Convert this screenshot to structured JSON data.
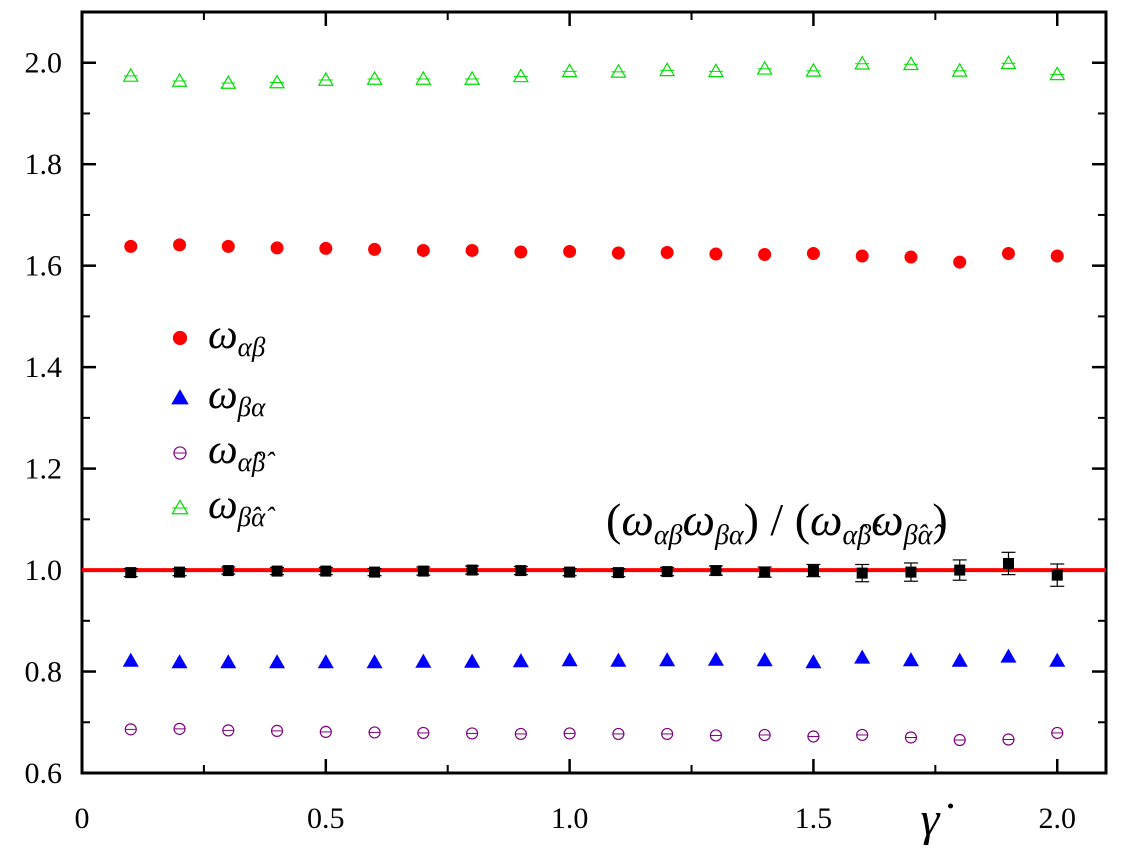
{
  "chart_data": {
    "type": "scatter",
    "title": "",
    "xlabel": "γ̇",
    "ylabel": "",
    "xlim": [
      0,
      2.1
    ],
    "ylim": [
      0.6,
      2.1
    ],
    "xticks": [
      0,
      0.5,
      1.0,
      1.5,
      2.0
    ],
    "xtick_labels": [
      "0",
      "0.5",
      "1.0",
      "1.5",
      "2.0"
    ],
    "yticks": [
      0.6,
      0.8,
      1.0,
      1.2,
      1.4,
      1.6,
      1.8,
      2.0
    ],
    "ytick_labels": [
      "0.6",
      "0.8",
      "1.0",
      "1.2",
      "1.4",
      "1.6",
      "1.8",
      "2.0"
    ],
    "grid": false,
    "legend_position": "left-middle",
    "x": [
      0.1,
      0.2,
      0.3,
      0.4,
      0.5,
      0.6,
      0.7,
      0.8,
      0.9,
      1.0,
      1.1,
      1.2,
      1.3,
      1.4,
      1.5,
      1.6,
      1.7,
      1.8,
      1.9,
      2.0
    ],
    "series": [
      {
        "name": "ω_αβ",
        "marker": "filled-circle",
        "color": "#ff0000",
        "values": [
          1.638,
          1.641,
          1.638,
          1.635,
          1.634,
          1.632,
          1.63,
          1.63,
          1.627,
          1.628,
          1.625,
          1.626,
          1.623,
          1.622,
          1.624,
          1.619,
          1.617,
          1.607,
          1.624,
          1.619
        ]
      },
      {
        "name": "ω_βα",
        "marker": "filled-triangle",
        "color": "#0000ff",
        "values": [
          0.821,
          0.818,
          0.818,
          0.818,
          0.818,
          0.818,
          0.819,
          0.819,
          0.82,
          0.822,
          0.821,
          0.822,
          0.823,
          0.822,
          0.818,
          0.827,
          0.822,
          0.821,
          0.829,
          0.821
        ]
      },
      {
        "name": "ω_α̂β̂",
        "marker": "open-circle",
        "color": "#7f007f",
        "values": [
          0.686,
          0.687,
          0.684,
          0.683,
          0.681,
          0.68,
          0.679,
          0.678,
          0.677,
          0.678,
          0.677,
          0.677,
          0.674,
          0.675,
          0.672,
          0.675,
          0.67,
          0.665,
          0.666,
          0.679
        ]
      },
      {
        "name": "ω_β̂α̂",
        "marker": "open-triangle",
        "color": "#00dd00",
        "values": [
          1.974,
          1.964,
          1.96,
          1.961,
          1.966,
          1.968,
          1.968,
          1.968,
          1.973,
          1.983,
          1.982,
          1.985,
          1.983,
          1.988,
          1.984,
          1.998,
          1.997,
          1.984,
          1.999,
          1.977
        ]
      },
      {
        "name": "(ω_αβ ω_βα)/(ω_α̂β̂ ω_β̂α̂)",
        "marker": "filled-square",
        "color": "#000000",
        "values": [
          0.995,
          0.996,
          0.999,
          0.998,
          0.998,
          0.996,
          0.998,
          1.0,
          0.999,
          0.996,
          0.995,
          0.997,
          0.999,
          0.996,
          0.999,
          0.994,
          0.996,
          1.0,
          1.013,
          0.99
        ],
        "errors": [
          0.008,
          0.007,
          0.007,
          0.007,
          0.007,
          0.007,
          0.008,
          0.008,
          0.008,
          0.007,
          0.008,
          0.008,
          0.009,
          0.01,
          0.012,
          0.017,
          0.018,
          0.02,
          0.022,
          0.022
        ]
      }
    ],
    "reference_line": {
      "y": 1.0,
      "color": "#ff0000"
    },
    "legend": [
      {
        "base": "ω",
        "sub": "αβ",
        "marker": "filled-circle",
        "color": "#ff0000"
      },
      {
        "base": "ω",
        "sub": "βα",
        "marker": "filled-triangle",
        "color": "#0000ff"
      },
      {
        "base": "ω",
        "sub": "α̂β̂",
        "marker": "open-circle",
        "color": "#7f007f"
      },
      {
        "base": "ω",
        "sub": "β̂α̂",
        "marker": "open-triangle",
        "color": "#00dd00"
      }
    ],
    "annotation": {
      "open_paren": "(",
      "w": "ω",
      "sub1": "αβ",
      "sub2": "βα",
      "middle": ") / (",
      "sub3": "α̂β̂",
      "sub4": "β̂α̂",
      "close_paren": ")"
    }
  }
}
